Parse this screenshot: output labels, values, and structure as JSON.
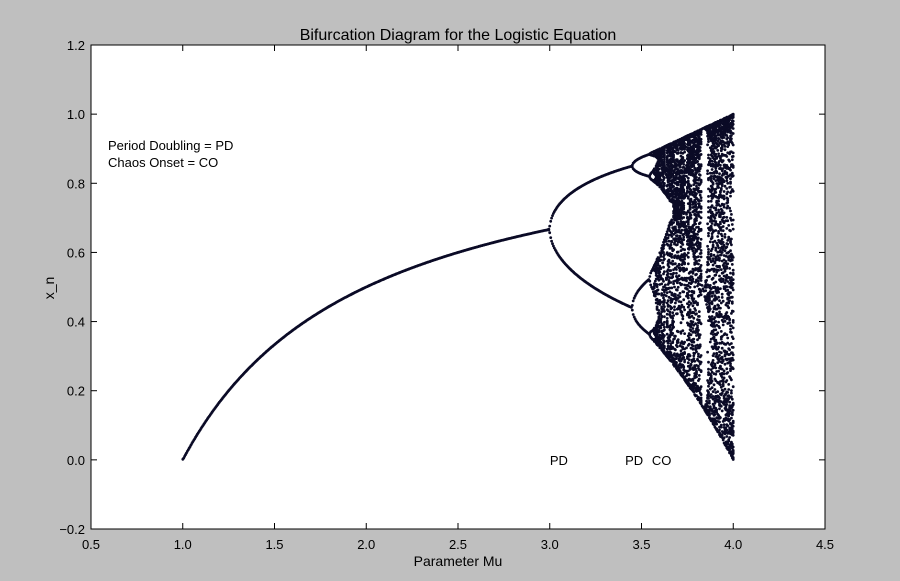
{
  "chart_data": {
    "type": "scatter",
    "title": "Bifurcation Diagram for the Logistic Equation",
    "xlabel": "Parameter Mu",
    "ylabel": "x_n",
    "xlim": [
      0.5,
      4.5
    ],
    "ylim": [
      -0.2,
      1.2
    ],
    "xticks": [
      {
        "value": 0.5,
        "label": "0.5"
      },
      {
        "value": 1.0,
        "label": "1.0"
      },
      {
        "value": 1.5,
        "label": "1.5"
      },
      {
        "value": 2.0,
        "label": "2.0"
      },
      {
        "value": 2.5,
        "label": "2.5"
      },
      {
        "value": 3.0,
        "label": "3.0"
      },
      {
        "value": 3.5,
        "label": "3.5"
      },
      {
        "value": 4.0,
        "label": "4.0"
      },
      {
        "value": 4.5,
        "label": "4.5"
      }
    ],
    "yticks": [
      {
        "value": -0.2,
        "label": "−0.2"
      },
      {
        "value": 0.0,
        "label": "0.0"
      },
      {
        "value": 0.2,
        "label": "0.2"
      },
      {
        "value": 0.4,
        "label": "0.4"
      },
      {
        "value": 0.6,
        "label": "0.6"
      },
      {
        "value": 0.8,
        "label": "0.8"
      },
      {
        "value": 1.0,
        "label": "1.0"
      },
      {
        "value": 1.2,
        "label": "1.2"
      }
    ],
    "grid": false,
    "series": [
      {
        "mu_range": [
          1.0,
          4.0
        ],
        "mu_step": 0.005,
        "color": "#0b0b26"
      }
    ],
    "legend_text": [
      "Period Doubling = PD",
      "Chaos Onset = CO"
    ],
    "annotations": [
      {
        "text": "PD",
        "x": 3.05,
        "y": 0.0
      },
      {
        "text": "PD",
        "x": 3.46,
        "y": 0.0
      },
      {
        "text": "CO",
        "x": 3.61,
        "y": 0.0
      }
    ]
  }
}
